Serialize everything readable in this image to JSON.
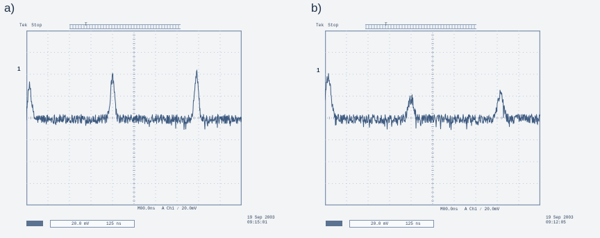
{
  "panels": [
    {
      "label": "a)",
      "header": {
        "brand": "Tek",
        "status": "Stop",
        "trigger_text": "T"
      },
      "channel_marker": "1",
      "readouts": {
        "scale": "20.0 mV",
        "timebase": "125 ns",
        "horizontal": "M00.0ns",
        "trigger": "A  Ch1  ∕  20.0mV"
      },
      "date": "19 Sep 2003",
      "time": "09:15:01"
    },
    {
      "label": "b)",
      "header": {
        "brand": "Tek",
        "status": "Stop",
        "trigger_text": "T"
      },
      "channel_marker": "1",
      "readouts": {
        "scale": "20.0 mV",
        "timebase": "125 ns",
        "horizontal": "M00.0ns",
        "trigger": "A  Ch1  ∕  20.0mV"
      },
      "date": "19 Sep 2003",
      "time": "09:12:05"
    }
  ],
  "colors": {
    "background": "#f2f4f6",
    "graticule": "#7f92ad",
    "grid_dots": "#aebdcf",
    "trace": "#3d5a80",
    "text": "#2c3e58",
    "chip": "#5b7290"
  },
  "chart_data": [
    {
      "type": "line",
      "title": "",
      "xlabel": "",
      "ylabel": "",
      "xlim": [
        0,
        10
      ],
      "ylim": [
        -4,
        4
      ],
      "grid": true,
      "baseline": -0.05,
      "noise_amplitude": 0.22,
      "series": [
        {
          "peaks": [
            {
              "x": 0.15,
              "y": 1.5
            },
            {
              "x": 4.0,
              "y": 1.9
            },
            {
              "x": 7.9,
              "y": 2.1
            }
          ],
          "peak_width": 0.13
        }
      ]
    },
    {
      "type": "line",
      "title": "",
      "xlabel": "",
      "ylabel": "",
      "xlim": [
        0,
        10
      ],
      "ylim": [
        -4,
        4
      ],
      "grid": true,
      "baseline": -0.05,
      "noise_amplitude": 0.22,
      "series": [
        {
          "peaks": [
            {
              "x": 0.15,
              "y": 1.9
            },
            {
              "x": 4.0,
              "y": 0.95
            },
            {
              "x": 8.15,
              "y": 1.2
            }
          ],
          "peak_width": 0.18
        }
      ]
    }
  ]
}
